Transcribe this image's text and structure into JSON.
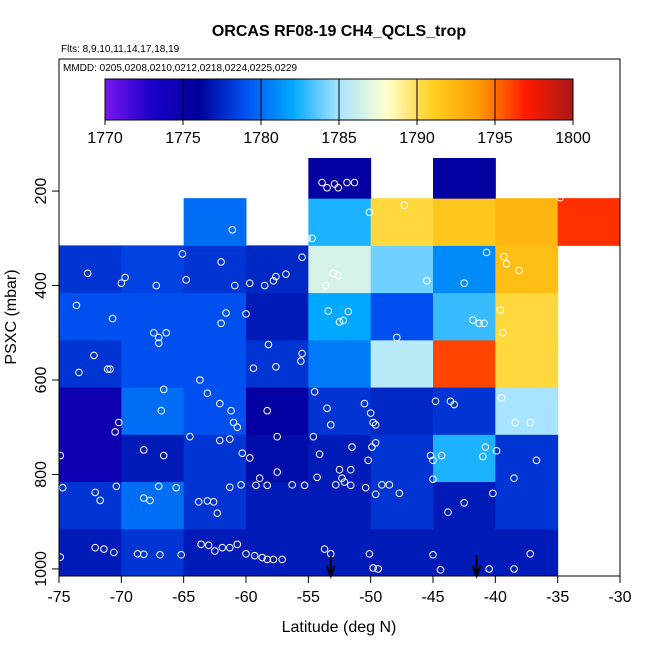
{
  "chart_data": {
    "type": "heatmap",
    "title": "ORCAS RF08-19 CH4_QCLS_trop",
    "subtitle_flights": "Flts: 8,9,10,11,14,17,18,19",
    "subtitle_dates": "MMDD: 0205,0208,0210,0212,0218,0224,0225,0229",
    "xlabel": "Latitude (deg N)",
    "ylabel": "PSXC (mbar)",
    "xlim": [
      -75,
      -30
    ],
    "ylim": [
      1015,
      130
    ],
    "x_ticks": [
      "-75",
      "-70",
      "-65",
      "-60",
      "-55",
      "-50",
      "-45",
      "-40",
      "-35",
      "-30"
    ],
    "x_tick_values": [
      -75,
      -70,
      -65,
      -60,
      -55,
      -50,
      -45,
      -40,
      -35,
      -30
    ],
    "y_ticks": [
      "200",
      "400",
      "600",
      "800",
      "1000"
    ],
    "y_tick_values": [
      200,
      400,
      600,
      800,
      1000
    ],
    "colorbar": {
      "min": 1770,
      "max": 1800,
      "tick_labels": [
        "1770",
        "1775",
        "1780",
        "1785",
        "1790",
        "1795",
        "1800"
      ],
      "tick_values": [
        1770,
        1775,
        1780,
        1785,
        1790,
        1795,
        1800
      ],
      "colors": [
        "#7a16f0",
        "#1a00c8",
        "#00009a",
        "#0050f0",
        "#00a8ff",
        "#a8e4ff",
        "#ffffd0",
        "#ffd020",
        "#ff9a00",
        "#ff1a00",
        "#a81818"
      ]
    },
    "lat_edges": [
      -75,
      -70,
      -65,
      -60,
      -55,
      -50,
      -45,
      -40,
      -35,
      -30
    ],
    "p_edges": [
      1015,
      915,
      815,
      715,
      615,
      515,
      415,
      315,
      215,
      115
    ],
    "cells": [
      {
        "lat": -75,
        "p": 1015,
        "v": 1777
      },
      {
        "lat": -70,
        "p": 1015,
        "v": 1778
      },
      {
        "lat": -65,
        "p": 1015,
        "v": 1777
      },
      {
        "lat": -60,
        "p": 1015,
        "v": 1777
      },
      {
        "lat": -55,
        "p": 1015,
        "v": 1777
      },
      {
        "lat": -50,
        "p": 1015,
        "v": 1777
      },
      {
        "lat": -45,
        "p": 1015,
        "v": 1777
      },
      {
        "lat": -40,
        "p": 1015,
        "v": 1777
      },
      {
        "lat": -75,
        "p": 915,
        "v": 1778
      },
      {
        "lat": -70,
        "p": 915,
        "v": 1780
      },
      {
        "lat": -65,
        "p": 915,
        "v": 1778
      },
      {
        "lat": -60,
        "p": 915,
        "v": 1777
      },
      {
        "lat": -55,
        "p": 915,
        "v": 1777
      },
      {
        "lat": -50,
        "p": 915,
        "v": 1778
      },
      {
        "lat": -45,
        "p": 915,
        "v": 1777
      },
      {
        "lat": -40,
        "p": 915,
        "v": 1778
      },
      {
        "lat": -75,
        "p": 815,
        "v": 1774.5
      },
      {
        "lat": -70,
        "p": 815,
        "v": 1777
      },
      {
        "lat": -65,
        "p": 815,
        "v": 1778
      },
      {
        "lat": -60,
        "p": 815,
        "v": 1776.5
      },
      {
        "lat": -55,
        "p": 815,
        "v": 1777
      },
      {
        "lat": -50,
        "p": 815,
        "v": 1778
      },
      {
        "lat": -45,
        "p": 815,
        "v": 1782.5
      },
      {
        "lat": -40,
        "p": 815,
        "v": 1778
      },
      {
        "lat": -75,
        "p": 715,
        "v": 1774.5
      },
      {
        "lat": -70,
        "p": 715,
        "v": 1780
      },
      {
        "lat": -65,
        "p": 715,
        "v": 1779
      },
      {
        "lat": -60,
        "p": 715,
        "v": 1775.5
      },
      {
        "lat": -55,
        "p": 715,
        "v": 1778
      },
      {
        "lat": -50,
        "p": 715,
        "v": 1777.5
      },
      {
        "lat": -45,
        "p": 715,
        "v": 1778
      },
      {
        "lat": -40,
        "p": 715,
        "v": 1785
      },
      {
        "lat": -75,
        "p": 615,
        "v": 1778
      },
      {
        "lat": -70,
        "p": 615,
        "v": 1779
      },
      {
        "lat": -65,
        "p": 615,
        "v": 1779
      },
      {
        "lat": -60,
        "p": 615,
        "v": 1778
      },
      {
        "lat": -55,
        "p": 615,
        "v": 1780.5
      },
      {
        "lat": -50,
        "p": 615,
        "v": 1785.5
      },
      {
        "lat": -45,
        "p": 615,
        "v": 1796
      },
      {
        "lat": -40,
        "p": 615,
        "v": 1790.5
      },
      {
        "lat": -75,
        "p": 515,
        "v": 1779
      },
      {
        "lat": -70,
        "p": 515,
        "v": 1779
      },
      {
        "lat": -65,
        "p": 515,
        "v": 1779
      },
      {
        "lat": -60,
        "p": 515,
        "v": 1777
      },
      {
        "lat": -55,
        "p": 515,
        "v": 1782
      },
      {
        "lat": -50,
        "p": 515,
        "v": 1779
      },
      {
        "lat": -45,
        "p": 515,
        "v": 1783
      },
      {
        "lat": -40,
        "p": 515,
        "v": 1790.5
      },
      {
        "lat": -75,
        "p": 415,
        "v": 1778
      },
      {
        "lat": -70,
        "p": 415,
        "v": 1778.5
      },
      {
        "lat": -65,
        "p": 415,
        "v": 1778
      },
      {
        "lat": -60,
        "p": 415,
        "v": 1777.5
      },
      {
        "lat": -55,
        "p": 415,
        "v": 1786.5
      },
      {
        "lat": -50,
        "p": 415,
        "v": 1784
      },
      {
        "lat": -45,
        "p": 415,
        "v": 1781
      },
      {
        "lat": -40,
        "p": 415,
        "v": 1792
      },
      {
        "lat": -65,
        "p": 315,
        "v": 1780
      },
      {
        "lat": -55,
        "p": 315,
        "v": 1782.5
      },
      {
        "lat": -50,
        "p": 315,
        "v": 1790.5
      },
      {
        "lat": -45,
        "p": 315,
        "v": 1791.5
      },
      {
        "lat": -40,
        "p": 315,
        "v": 1792.5
      },
      {
        "lat": -35,
        "p": 315,
        "v": 1796.5
      },
      {
        "lat": -55,
        "p": 215,
        "v": 1775.5
      },
      {
        "lat": -45,
        "p": 215,
        "v": 1775.5
      }
    ],
    "points": [
      [
        -74.9,
        975
      ],
      [
        -72.1,
        955
      ],
      [
        -71.4,
        958
      ],
      [
        -70.6,
        965
      ],
      [
        -68.7,
        968
      ],
      [
        -68.2,
        969
      ],
      [
        -66.9,
        970
      ],
      [
        -65.2,
        970
      ],
      [
        -63.6,
        948
      ],
      [
        -63.0,
        950
      ],
      [
        -62.5,
        962
      ],
      [
        -61.9,
        955
      ],
      [
        -61.3,
        955
      ],
      [
        -60.7,
        948
      ],
      [
        -60.0,
        968
      ],
      [
        -59.3,
        972
      ],
      [
        -58.7,
        976
      ],
      [
        -58.3,
        980
      ],
      [
        -57.8,
        980
      ],
      [
        -57.1,
        980
      ],
      [
        -53.7,
        958
      ],
      [
        -53.2,
        968
      ],
      [
        -50.1,
        968
      ],
      [
        -49.8,
        998
      ],
      [
        -49.4,
        1000
      ],
      [
        -45.0,
        970
      ],
      [
        -44.4,
        1002
      ],
      [
        -40.5,
        1000
      ],
      [
        -38.5,
        1000
      ],
      [
        -37.2,
        968
      ],
      [
        -74.7,
        828
      ],
      [
        -72.1,
        838
      ],
      [
        -71.7,
        855
      ],
      [
        -70.4,
        825
      ],
      [
        -68.2,
        850
      ],
      [
        -67.7,
        855
      ],
      [
        -67.0,
        825
      ],
      [
        -65.6,
        828
      ],
      [
        -63.8,
        858
      ],
      [
        -63.1,
        856
      ],
      [
        -62.6,
        858
      ],
      [
        -62.3,
        882
      ],
      [
        -61.3,
        827
      ],
      [
        -60.4,
        822
      ],
      [
        -59.2,
        823
      ],
      [
        -58.9,
        808
      ],
      [
        -58.3,
        823
      ],
      [
        -57.5,
        795
      ],
      [
        -56.3,
        822
      ],
      [
        -55.3,
        823
      ],
      [
        -54.3,
        806
      ],
      [
        -52.8,
        822
      ],
      [
        -52.1,
        816
      ],
      [
        -51.6,
        823
      ],
      [
        -50.4,
        828
      ],
      [
        -49.6,
        842
      ],
      [
        -49.1,
        822
      ],
      [
        -48.5,
        822
      ],
      [
        -47.7,
        840
      ],
      [
        -45.0,
        810
      ],
      [
        -43.8,
        880
      ],
      [
        -42.5,
        860
      ],
      [
        -40.2,
        840
      ],
      [
        -74.9,
        760
      ],
      [
        -70.2,
        690
      ],
      [
        -70.5,
        710
      ],
      [
        -68.2,
        748
      ],
      [
        -66.8,
        665
      ],
      [
        -66.6,
        760
      ],
      [
        -64.5,
        720
      ],
      [
        -62.1,
        728
      ],
      [
        -61.3,
        725
      ],
      [
        -60.3,
        755
      ],
      [
        -59.7,
        765
      ],
      [
        -57.5,
        720
      ],
      [
        -54.6,
        720
      ],
      [
        -54.1,
        757
      ],
      [
        -52.5,
        790
      ],
      [
        -52.3,
        808
      ],
      [
        -51.6,
        790
      ],
      [
        -51.5,
        742
      ],
      [
        -50.2,
        770
      ],
      [
        -49.9,
        742
      ],
      [
        -49.6,
        733
      ],
      [
        -45.2,
        760
      ],
      [
        -45.0,
        770
      ],
      [
        -44.3,
        760
      ],
      [
        -41.0,
        762
      ],
      [
        -40.8,
        742
      ],
      [
        -39.9,
        750
      ],
      [
        -38.5,
        808
      ],
      [
        -36.7,
        770
      ],
      [
        -73.4,
        584
      ],
      [
        -72.2,
        548
      ],
      [
        -71.1,
        577
      ],
      [
        -70.9,
        577
      ],
      [
        -67.0,
        522
      ],
      [
        -66.6,
        620
      ],
      [
        -63.7,
        600
      ],
      [
        -63.1,
        628
      ],
      [
        -62.1,
        650
      ],
      [
        -61.2,
        665
      ],
      [
        -61.0,
        690
      ],
      [
        -60.7,
        700
      ],
      [
        -59.4,
        575
      ],
      [
        -58.3,
        665
      ],
      [
        -57.6,
        572
      ],
      [
        -55.6,
        560
      ],
      [
        -54.5,
        625
      ],
      [
        -53.5,
        660
      ],
      [
        -53.2,
        695
      ],
      [
        -50.5,
        650
      ],
      [
        -50.0,
        670
      ],
      [
        -49.8,
        690
      ],
      [
        -49.6,
        695
      ],
      [
        -44.8,
        645
      ],
      [
        -43.6,
        645
      ],
      [
        -43.3,
        652
      ],
      [
        -39.5,
        638
      ],
      [
        -38.4,
        690
      ],
      [
        -37.2,
        690
      ],
      [
        -73.6,
        442
      ],
      [
        -67.4,
        500
      ],
      [
        -70.7,
        470
      ],
      [
        -67.0,
        510
      ],
      [
        -66.4,
        500
      ],
      [
        -62.0,
        480
      ],
      [
        -61.6,
        458
      ],
      [
        -60.0,
        460
      ],
      [
        -58.2,
        525
      ],
      [
        -55.5,
        544
      ],
      [
        -53.4,
        454
      ],
      [
        -52.5,
        477
      ],
      [
        -52.2,
        474
      ],
      [
        -51.8,
        455
      ],
      [
        -47.9,
        510
      ],
      [
        -41.8,
        473
      ],
      [
        -41.3,
        480
      ],
      [
        -40.9,
        480
      ],
      [
        -39.4,
        500
      ],
      [
        -39.6,
        452
      ],
      [
        -72.7,
        374
      ],
      [
        -70.0,
        395
      ],
      [
        -69.7,
        383
      ],
      [
        -67.2,
        400
      ],
      [
        -65.1,
        333
      ],
      [
        -64.8,
        388
      ],
      [
        -62.0,
        350
      ],
      [
        -61.1,
        282
      ],
      [
        -60.9,
        400
      ],
      [
        -59.7,
        395
      ],
      [
        -58.5,
        400
      ],
      [
        -57.8,
        390
      ],
      [
        -57.6,
        381
      ],
      [
        -56.8,
        376
      ],
      [
        -55.5,
        340
      ],
      [
        -55.1,
        300
      ],
      [
        -54.7,
        300
      ],
      [
        -53.6,
        400
      ],
      [
        -53.0,
        374
      ],
      [
        -52.6,
        379
      ],
      [
        -50.1,
        245
      ],
      [
        -47.3,
        230
      ],
      [
        -45.5,
        390
      ],
      [
        -42.5,
        395
      ],
      [
        -40.7,
        330
      ],
      [
        -39.3,
        339
      ],
      [
        -39.1,
        354
      ],
      [
        -38.1,
        368
      ],
      [
        -34.8,
        214
      ],
      [
        -53.9,
        182
      ],
      [
        -53.5,
        193
      ],
      [
        -52.9,
        185
      ],
      [
        -52.6,
        193
      ],
      [
        -51.9,
        182
      ],
      [
        -51.3,
        182
      ]
    ],
    "arrows_lat": [
      -53.2,
      -41.5
    ]
  }
}
